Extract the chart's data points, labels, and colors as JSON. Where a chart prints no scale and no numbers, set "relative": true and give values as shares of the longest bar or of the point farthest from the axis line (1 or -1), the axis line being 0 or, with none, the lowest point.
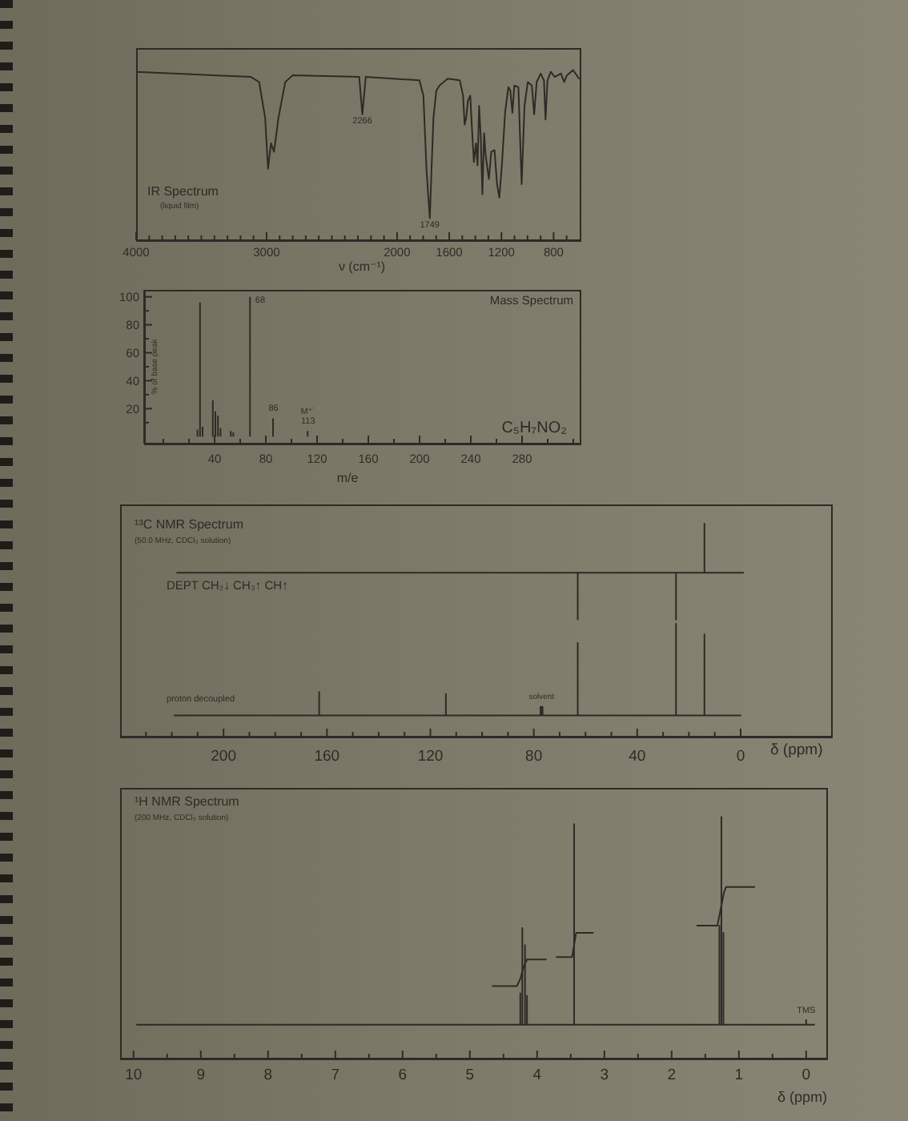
{
  "chart_data": [
    {
      "type": "line",
      "title": "IR Spectrum",
      "subtitle": "(liquid film)",
      "xlabel": "ν (cm⁻¹)",
      "relative": true,
      "color": "#2d2b27",
      "x": [
        4000,
        3120,
        3057,
        3011,
        2989,
        2966,
        2943,
        2909,
        2857,
        2800,
        2290,
        2266,
        2240,
        1829,
        1798,
        1774,
        1749,
        1736,
        1721,
        1699,
        1674,
        1643,
        1612,
        1519,
        1494,
        1482,
        1470,
        1457,
        1439,
        1426,
        1411,
        1395,
        1383,
        1371,
        1358,
        1346,
        1333,
        1321,
        1296,
        1278,
        1253,
        1234,
        1216,
        1194,
        1172,
        1147,
        1132,
        1116,
        1101,
        1070,
        1045,
        1023,
        998,
        967,
        949,
        930,
        899,
        874,
        862,
        847,
        822,
        791,
        744,
        719,
        698,
        651,
        605
      ],
      "values": [
        0.99,
        0.96,
        0.93,
        0.72,
        0.42,
        0.57,
        0.52,
        0.72,
        0.93,
        0.97,
        0.96,
        0.74,
        0.96,
        0.94,
        0.85,
        0.41,
        0.13,
        0.41,
        0.72,
        0.88,
        0.91,
        0.93,
        0.95,
        0.94,
        0.85,
        0.68,
        0.72,
        0.82,
        0.85,
        0.66,
        0.46,
        0.57,
        0.44,
        0.79,
        0.6,
        0.27,
        0.63,
        0.5,
        0.36,
        0.52,
        0.53,
        0.33,
        0.25,
        0.47,
        0.75,
        0.9,
        0.88,
        0.75,
        0.91,
        0.9,
        0.33,
        0.79,
        0.93,
        0.91,
        0.74,
        0.93,
        0.98,
        0.94,
        0.71,
        0.94,
        0.99,
        0.96,
        0.98,
        0.93,
        0.97,
        1,
        0.95
      ],
      "xlim": [
        4000,
        600
      ],
      "xticks": [
        4000,
        {
          "value": 3900,
          "label": null
        },
        {
          "value": 3800,
          "label": null
        },
        {
          "value": 3700,
          "label": null
        },
        {
          "value": 3600,
          "label": null
        },
        {
          "value": 3500,
          "label": null
        },
        {
          "value": 3400,
          "label": null
        },
        {
          "value": 3300,
          "label": null
        },
        {
          "value": 3200,
          "label": null
        },
        {
          "value": 3100,
          "label": null
        },
        3000,
        {
          "value": 2900,
          "label": null
        },
        {
          "value": 2800,
          "label": null
        },
        {
          "value": 2700,
          "label": null
        },
        {
          "value": 2600,
          "label": null
        },
        {
          "value": 2500,
          "label": null
        },
        {
          "value": 2400,
          "label": null
        },
        {
          "value": 2300,
          "label": null
        },
        {
          "value": 2200,
          "label": null
        },
        {
          "value": 2100,
          "label": null
        },
        2000,
        {
          "value": 1900,
          "label": null
        },
        {
          "value": 1800,
          "label": null
        },
        {
          "value": 1700,
          "label": null
        },
        1600,
        {
          "value": 1500,
          "label": null
        },
        {
          "value": 1400,
          "label": null
        },
        {
          "value": 1300,
          "label": null
        },
        1200,
        {
          "value": 1100,
          "label": null
        },
        {
          "value": 1000,
          "label": null
        },
        {
          "value": 900,
          "label": null
        },
        800,
        {
          "value": 700,
          "label": null
        }
      ],
      "annotations": [
        {
          "text": "2266",
          "x": 2266,
          "y": 0.74
        },
        {
          "text": "1749",
          "x": 1749,
          "y": 0.13
        }
      ]
    },
    {
      "type": "bar",
      "title": "Mass Spectrum",
      "xlabel": "m/e",
      "ylabel": "% of base peak",
      "color": "#2d2b27",
      "x": [
        27,
        29,
        31,
        39,
        41,
        43,
        45,
        53,
        55,
        68,
        86,
        113
      ],
      "values": [
        5,
        96,
        7,
        26,
        18,
        15,
        6,
        4,
        3,
        100,
        13,
        4
      ],
      "xlim": [
        -15,
        325
      ],
      "xticks": [
        {
          "value": 0,
          "label": null
        },
        {
          "value": 20,
          "label": null
        },
        40,
        {
          "value": 60,
          "label": null
        },
        80,
        {
          "value": 100,
          "label": null
        },
        120,
        {
          "value": 140,
          "label": null
        },
        160,
        {
          "value": 180,
          "label": null
        },
        200,
        {
          "value": 220,
          "label": null
        },
        240,
        {
          "value": 260,
          "label": null
        },
        280,
        {
          "value": 300,
          "label": null
        },
        {
          "value": 320,
          "label": null
        }
      ],
      "ylim": [
        -5,
        105
      ],
      "yticks": [
        {
          "value": 10,
          "label": null
        },
        20,
        {
          "value": 30,
          "label": null
        },
        40,
        {
          "value": 50,
          "label": null
        },
        60,
        {
          "value": 70,
          "label": null
        },
        80,
        {
          "value": 90,
          "label": null
        },
        100
      ],
      "annotations": [
        {
          "text": "68",
          "x": 68,
          "y": 100
        },
        {
          "text": "86",
          "x": 86,
          "y": 13
        },
        {
          "text": "M⁺˙\n113",
          "x": 113,
          "y": 4
        },
        "C₅H₇NO₂"
      ]
    },
    {
      "type": "line",
      "title": "¹³C NMR Spectrum",
      "subtitle": "(50.0 MHz, CDCl₃ solution)",
      "xlabel": "δ (ppm)",
      "relative": true,
      "series": [
        {
          "name": "DEPT CH₂↓ CH₃↑ CH↑",
          "color": "#2d2b27",
          "x": [
            218,
            63,
            63,
            63,
            25,
            25,
            25,
            14,
            14,
            14,
            -1
          ],
          "values": [
            0.77,
            0.77,
            0.55,
            0.77,
            0.77,
            0.55,
            0.77,
            0.77,
            1,
            0.77,
            0.77
          ]
        },
        {
          "name": "proton decoupled",
          "color": "#2d2b27",
          "x": [
            219,
            163,
            163,
            163,
            114,
            114,
            114,
            77.4,
            77.4,
            77.4,
            77,
            77,
            77,
            76.6,
            76.6,
            76.6,
            63,
            63,
            63,
            25,
            25,
            25,
            14,
            14,
            14,
            0
          ],
          "values": [
            0.1,
            0.1,
            0.21,
            0.1,
            0.1,
            0.2,
            0.1,
            0.1,
            0.14,
            0.1,
            0.1,
            0.14,
            0.1,
            0.1,
            0.14,
            0.1,
            0.1,
            0.44,
            0.1,
            0.1,
            0.53,
            0.1,
            0.1,
            0.48,
            0.1,
            0.1
          ]
        }
      ],
      "xlim": [
        240,
        -35
      ],
      "xticks": [
        {
          "value": 230,
          "label": null
        },
        {
          "value": 220,
          "label": null
        },
        {
          "value": 210,
          "label": null
        },
        200,
        {
          "value": 190,
          "label": null
        },
        {
          "value": 180,
          "label": null
        },
        {
          "value": 170,
          "label": null
        },
        160,
        {
          "value": 150,
          "label": null
        },
        {
          "value": 140,
          "label": null
        },
        {
          "value": 130,
          "label": null
        },
        120,
        {
          "value": 110,
          "label": null
        },
        {
          "value": 100,
          "label": null
        },
        {
          "value": 90,
          "label": null
        },
        80,
        {
          "value": 70,
          "label": null
        },
        {
          "value": 60,
          "label": null
        },
        {
          "value": 50,
          "label": null
        },
        40,
        {
          "value": 30,
          "label": null
        },
        {
          "value": 20,
          "label": null
        },
        {
          "value": 10,
          "label": null
        },
        0
      ],
      "annotations": [
        {
          "text": "solvent",
          "x": 77,
          "y": 0.14
        }
      ]
    },
    {
      "type": "line",
      "title": "¹H NMR Spectrum",
      "subtitle": "(200 MHz, CDCl₃ solution)",
      "xlabel": "δ (ppm)",
      "relative": true,
      "series": [
        {
          "color": "#2d2b27",
          "x": [
            9.95,
            4.25,
            4.25,
            4.25,
            4.22,
            4.22,
            4.22,
            4.18,
            4.18,
            4.18,
            4.15,
            4.15,
            4.15,
            3.45,
            3.45,
            3.45,
            1.29,
            1.29,
            1.29,
            1.26,
            1.26,
            1.26,
            1.23,
            1.23,
            1.23,
            0,
            0,
            0,
            -0.12
          ],
          "values": [
            0.14,
            0.14,
            0.27,
            0.14,
            0.14,
            0.54,
            0.14,
            0.14,
            0.47,
            0.14,
            0.14,
            0.26,
            0.14,
            0.14,
            0.97,
            0.14,
            0.14,
            0.55,
            0.14,
            0.14,
            1,
            0.14,
            0.14,
            0.52,
            0.14,
            0.14,
            0.16,
            0.14,
            0.14
          ]
        },
        {
          "color": "#2d2b27",
          "x": [
            4.66,
            4.3,
            4.25,
            4.2,
            4.15,
            3.87
          ],
          "values": [
            0.3,
            0.3,
            0.33,
            0.38,
            0.41,
            0.41
          ]
        },
        {
          "color": "#2d2b27",
          "x": [
            3.71,
            3.48,
            3.45,
            3.42,
            3.17
          ],
          "values": [
            0.42,
            0.42,
            0.47,
            0.52,
            0.52
          ]
        },
        {
          "color": "#2d2b27",
          "x": [
            1.62,
            1.32,
            1.27,
            1.22,
            1.19,
            0.77
          ],
          "values": [
            0.55,
            0.55,
            0.62,
            0.69,
            0.71,
            0.71
          ]
        }
      ],
      "xlim": [
        10.2,
        -0.3
      ],
      "xticks": [
        10,
        {
          "value": 9.5,
          "label": null
        },
        9,
        {
          "value": 8.5,
          "label": null
        },
        8,
        {
          "value": 7.5,
          "label": null
        },
        7,
        {
          "value": 6.5,
          "label": null
        },
        6,
        {
          "value": 5.5,
          "label": null
        },
        5,
        {
          "value": 4.5,
          "label": null
        },
        4,
        {
          "value": 3.5,
          "label": null
        },
        3,
        {
          "value": 2.5,
          "label": null
        },
        2,
        {
          "value": 1.5,
          "label": null
        },
        1,
        {
          "value": 0.5,
          "label": null
        },
        0
      ],
      "annotations": [
        {
          "text": "TMS",
          "x": 0,
          "y": 0.16
        }
      ]
    }
  ]
}
